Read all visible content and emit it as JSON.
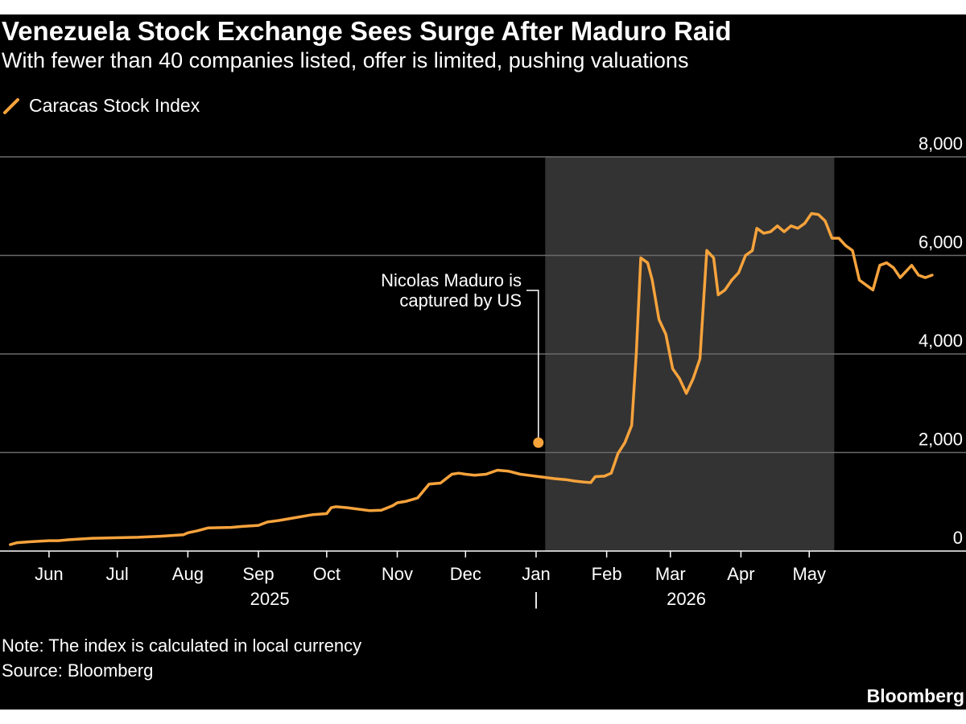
{
  "title": "Venezuela Stock Exchange Sees Surge After Maduro Raid",
  "subtitle": "With fewer than 40 companies listed, offer is limited, pushing valuations",
  "note": "Note: The index is calculated in local currency",
  "source": "Source: Bloomberg",
  "logo": "Bloomberg",
  "colors": {
    "background": "#000000",
    "series": "#f7a33c",
    "shade": "#333333",
    "grid": "#6a6a6a",
    "text": "#ffffff"
  },
  "chart_data": {
    "type": "line",
    "title": "Venezuela Stock Exchange Sees Surge After Maduro Raid",
    "subtitle": "With fewer than 40 companies listed, offer is limited, pushing valuations",
    "legend_position": "top-left",
    "grid": true,
    "y_axis_side": "right",
    "ylim": [
      0,
      8000
    ],
    "y_ticks": [
      {
        "value": 0,
        "label": "0"
      },
      {
        "value": 2000,
        "label": "2,000"
      },
      {
        "value": 4000,
        "label": "4,000"
      },
      {
        "value": 6000,
        "label": "6,000"
      },
      {
        "value": 8000,
        "label": "8,000"
      }
    ],
    "xlim": [
      "2025-05-14",
      "2026-06-12"
    ],
    "x_ticks": [
      {
        "date": "2025-06-01",
        "label": "Jun"
      },
      {
        "date": "2025-07-01",
        "label": "Jul"
      },
      {
        "date": "2025-08-01",
        "label": "Aug"
      },
      {
        "date": "2025-09-01",
        "label": "Sep"
      },
      {
        "date": "2025-10-01",
        "label": "Oct"
      },
      {
        "date": "2025-11-01",
        "label": "Nov"
      },
      {
        "date": "2025-12-01",
        "label": "Dec"
      },
      {
        "date": "2026-01-01",
        "label": "Jan"
      },
      {
        "date": "2026-02-01",
        "label": "Feb"
      },
      {
        "date": "2026-03-01",
        "label": "Mar"
      },
      {
        "date": "2026-04-01",
        "label": "Apr"
      },
      {
        "date": "2026-05-01",
        "label": "May"
      }
    ],
    "year_labels": [
      {
        "date": "2025-09-06",
        "label": "2025"
      },
      {
        "date": "2026-03-08",
        "label": "2026"
      }
    ],
    "year_divider": {
      "date": "2026-01-01",
      "label": "|"
    },
    "shaded_region": {
      "start": "2026-01-05",
      "end": "2026-05-12"
    },
    "annotation": {
      "lines": [
        "Nicolas Maduro is",
        "captured by US"
      ],
      "date": "2026-01-02",
      "value": 2200
    },
    "series": [
      {
        "name": "Caracas Stock Index",
        "color": "#f7a33c",
        "points": [
          [
            "2025-05-15",
            130
          ],
          [
            "2025-05-18",
            170
          ],
          [
            "2025-05-24",
            190
          ],
          [
            "2025-06-01",
            210
          ],
          [
            "2025-06-05",
            210
          ],
          [
            "2025-06-10",
            230
          ],
          [
            "2025-06-20",
            260
          ],
          [
            "2025-06-30",
            270
          ],
          [
            "2025-07-10",
            280
          ],
          [
            "2025-07-20",
            300
          ],
          [
            "2025-07-30",
            330
          ],
          [
            "2025-08-01",
            370
          ],
          [
            "2025-08-05",
            410
          ],
          [
            "2025-08-10",
            470
          ],
          [
            "2025-08-20",
            480
          ],
          [
            "2025-08-25",
            500
          ],
          [
            "2025-09-01",
            520
          ],
          [
            "2025-09-05",
            590
          ],
          [
            "2025-09-10",
            620
          ],
          [
            "2025-09-20",
            700
          ],
          [
            "2025-09-25",
            740
          ],
          [
            "2025-10-01",
            760
          ],
          [
            "2025-10-03",
            880
          ],
          [
            "2025-10-05",
            900
          ],
          [
            "2025-10-10",
            880
          ],
          [
            "2025-10-20",
            820
          ],
          [
            "2025-10-25",
            830
          ],
          [
            "2025-10-30",
            920
          ],
          [
            "2025-11-01",
            980
          ],
          [
            "2025-11-05",
            1010
          ],
          [
            "2025-11-10",
            1080
          ],
          [
            "2025-11-15",
            1360
          ],
          [
            "2025-11-20",
            1380
          ],
          [
            "2025-11-25",
            1560
          ],
          [
            "2025-11-28",
            1580
          ],
          [
            "2025-12-01",
            1560
          ],
          [
            "2025-12-05",
            1540
          ],
          [
            "2025-12-10",
            1560
          ],
          [
            "2025-12-15",
            1640
          ],
          [
            "2025-12-20",
            1620
          ],
          [
            "2025-12-25",
            1560
          ],
          [
            "2025-12-30",
            1530
          ],
          [
            "2026-01-04",
            1500
          ],
          [
            "2026-01-09",
            1470
          ],
          [
            "2026-01-14",
            1450
          ],
          [
            "2026-01-18",
            1420
          ],
          [
            "2026-01-22",
            1400
          ],
          [
            "2026-01-25",
            1390
          ],
          [
            "2026-01-27",
            1510
          ],
          [
            "2026-01-31",
            1520
          ],
          [
            "2026-02-03",
            1580
          ],
          [
            "2026-02-06",
            1980
          ],
          [
            "2026-02-09",
            2200
          ],
          [
            "2026-02-12",
            2550
          ],
          [
            "2026-02-14",
            4000
          ],
          [
            "2026-02-16",
            5950
          ],
          [
            "2026-02-19",
            5850
          ],
          [
            "2026-02-21",
            5500
          ],
          [
            "2026-02-24",
            4700
          ],
          [
            "2026-02-27",
            4400
          ],
          [
            "2026-03-02",
            3700
          ],
          [
            "2026-03-05",
            3500
          ],
          [
            "2026-03-08",
            3200
          ],
          [
            "2026-03-11",
            3500
          ],
          [
            "2026-03-14",
            3900
          ],
          [
            "2026-03-17",
            6100
          ],
          [
            "2026-03-20",
            5950
          ],
          [
            "2026-03-22",
            5200
          ],
          [
            "2026-03-25",
            5300
          ],
          [
            "2026-03-28",
            5500
          ],
          [
            "2026-03-31",
            5650
          ],
          [
            "2026-04-03",
            6000
          ],
          [
            "2026-04-06",
            6100
          ],
          [
            "2026-04-08",
            6550
          ],
          [
            "2026-04-11",
            6450
          ],
          [
            "2026-04-14",
            6480
          ],
          [
            "2026-04-17",
            6600
          ],
          [
            "2026-04-20",
            6480
          ],
          [
            "2026-04-23",
            6600
          ],
          [
            "2026-04-26",
            6550
          ],
          [
            "2026-04-29",
            6650
          ],
          [
            "2026-05-02",
            6850
          ],
          [
            "2026-05-05",
            6830
          ],
          [
            "2026-05-08",
            6700
          ],
          [
            "2026-05-11",
            6350
          ],
          [
            "2026-05-14",
            6350
          ],
          [
            "2026-05-17",
            6200
          ],
          [
            "2026-05-20",
            6100
          ],
          [
            "2026-05-23",
            5500
          ],
          [
            "2026-05-26",
            5400
          ],
          [
            "2026-05-29",
            5300
          ],
          [
            "2026-06-01",
            5800
          ],
          [
            "2026-06-04",
            5850
          ],
          [
            "2026-06-07",
            5750
          ],
          [
            "2026-06-10",
            5550
          ],
          [
            "2026-06-12",
            5650
          ],
          [
            "2026-06-15",
            5800
          ],
          [
            "2026-06-18",
            5600
          ],
          [
            "2026-06-21",
            5550
          ],
          [
            "2026-06-24",
            5600
          ]
        ]
      }
    ]
  }
}
